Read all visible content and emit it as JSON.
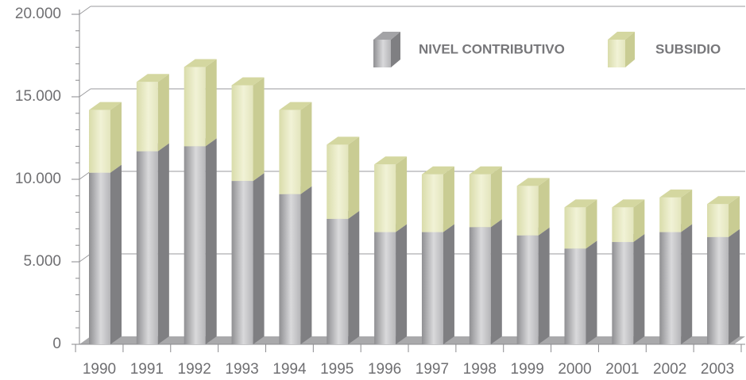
{
  "chart_data": {
    "type": "bar",
    "stacked": true,
    "categories": [
      "1990",
      "1991",
      "1992",
      "1993",
      "1994",
      "1995",
      "1996",
      "1997",
      "1998",
      "1999",
      "2000",
      "2001",
      "2002",
      "2003"
    ],
    "series": [
      {
        "name": "NIVEL CONTRIBUTIVO",
        "color": "#9a9a9d",
        "values": [
          10400,
          11700,
          12000,
          9900,
          9100,
          7600,
          6800,
          6800,
          7100,
          6600,
          5800,
          6200,
          6800,
          6500
        ]
      },
      {
        "name": "SUBSIDIO",
        "color": "#dfe1b3",
        "values": [
          3800,
          4200,
          4800,
          5800,
          5100,
          4500,
          4100,
          3500,
          3200,
          3000,
          2500,
          2100,
          2100,
          2000
        ]
      }
    ],
    "ylim": [
      0,
      20000
    ],
    "yticks": [
      0,
      {
        "value": 5000,
        "label": "5.000"
      },
      {
        "value": 10000,
        "label": "10.000"
      },
      {
        "value": 15000,
        "label": "15.000"
      },
      {
        "value": 20000,
        "label": "20.000"
      }
    ],
    "grid": true,
    "legend": "top-right"
  }
}
